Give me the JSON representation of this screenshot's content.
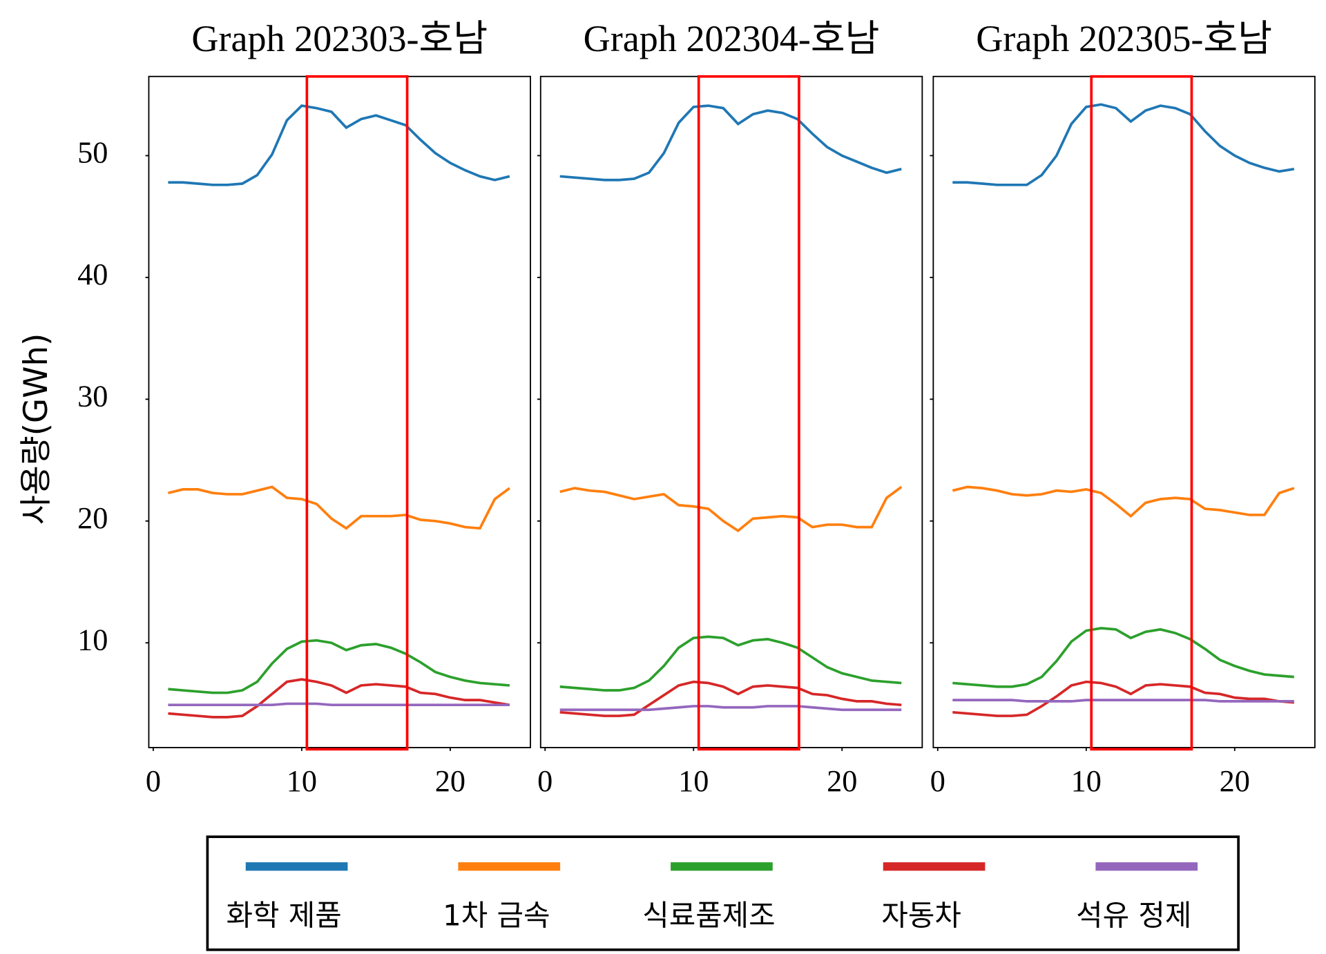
{
  "ylabel": "사용량(GWh)",
  "chart_data": [
    {
      "type": "line",
      "title": "Graph 202303-호남",
      "x": [
        1,
        2,
        3,
        4,
        5,
        6,
        7,
        8,
        9,
        10,
        11,
        12,
        13,
        14,
        15,
        16,
        17,
        18,
        19,
        20,
        21,
        22,
        23,
        24
      ],
      "xlim": [
        -0.3,
        25.4
      ],
      "xticks": [
        0,
        10,
        20
      ],
      "ylim": [
        1.4,
        56.5
      ],
      "yticks": [
        10,
        20,
        30,
        40,
        50
      ],
      "series": [
        {
          "name": "화학 제품",
          "color": "#1f77b4",
          "values": [
            47.8,
            47.8,
            47.7,
            47.6,
            47.6,
            47.7,
            48.4,
            50.1,
            52.9,
            54.1,
            53.9,
            53.6,
            52.3,
            53.0,
            53.3,
            52.9,
            52.5,
            51.3,
            50.2,
            49.4,
            48.8,
            48.3,
            48.0,
            48.3
          ]
        },
        {
          "name": "1차 금속",
          "color": "#ff7f0e",
          "values": [
            22.3,
            22.6,
            22.6,
            22.3,
            22.2,
            22.2,
            22.5,
            22.8,
            21.9,
            21.8,
            21.4,
            20.2,
            19.4,
            20.4,
            20.4,
            20.4,
            20.5,
            20.1,
            20.0,
            19.8,
            19.5,
            19.4,
            21.8,
            22.7
          ]
        },
        {
          "name": "식료품제조",
          "color": "#2ca02c",
          "values": [
            6.2,
            6.1,
            6.0,
            5.9,
            5.9,
            6.1,
            6.8,
            8.3,
            9.5,
            10.1,
            10.2,
            10.0,
            9.4,
            9.8,
            9.9,
            9.6,
            9.1,
            8.4,
            7.6,
            7.2,
            6.9,
            6.7,
            6.6,
            6.5
          ]
        },
        {
          "name": "자동차",
          "color": "#d62728",
          "values": [
            4.2,
            4.1,
            4.0,
            3.9,
            3.9,
            4.0,
            4.8,
            5.8,
            6.8,
            7.0,
            6.8,
            6.5,
            5.9,
            6.5,
            6.6,
            6.5,
            6.4,
            5.9,
            5.8,
            5.5,
            5.3,
            5.3,
            5.1,
            4.9
          ]
        },
        {
          "name": "석유 정제",
          "color": "#9467bd",
          "values": [
            4.9,
            4.9,
            4.9,
            4.9,
            4.9,
            4.9,
            4.9,
            4.9,
            5.0,
            5.0,
            5.0,
            4.9,
            4.9,
            4.9,
            4.9,
            4.9,
            4.9,
            4.9,
            4.9,
            4.9,
            4.9,
            4.9,
            4.9,
            4.9
          ]
        }
      ]
    },
    {
      "type": "line",
      "title": "Graph 202304-호남",
      "ytick_labels": false,
      "x": [
        1,
        2,
        3,
        4,
        5,
        6,
        7,
        8,
        9,
        10,
        11,
        12,
        13,
        14,
        15,
        16,
        17,
        18,
        19,
        20,
        21,
        22,
        23,
        24
      ],
      "xlim": [
        -0.3,
        25.4
      ],
      "xticks": [
        0,
        10,
        20
      ],
      "ylim": [
        1.4,
        56.5
      ],
      "yticks": [
        10,
        20,
        30,
        40,
        50
      ],
      "series": [
        {
          "name": "화학 제품",
          "color": "#1f77b4",
          "values": [
            48.3,
            48.2,
            48.1,
            48.0,
            48.0,
            48.1,
            48.6,
            50.2,
            52.7,
            54.0,
            54.1,
            53.9,
            52.6,
            53.4,
            53.7,
            53.5,
            53.0,
            51.8,
            50.7,
            50.0,
            49.5,
            49.0,
            48.6,
            48.9
          ]
        },
        {
          "name": "1차 금속",
          "color": "#ff7f0e",
          "values": [
            22.4,
            22.7,
            22.5,
            22.4,
            22.1,
            21.8,
            22.0,
            22.2,
            21.3,
            21.2,
            21.0,
            20.0,
            19.2,
            20.2,
            20.3,
            20.4,
            20.3,
            19.5,
            19.7,
            19.7,
            19.5,
            19.5,
            21.9,
            22.8
          ]
        },
        {
          "name": "식료품제조",
          "color": "#2ca02c",
          "values": [
            6.4,
            6.3,
            6.2,
            6.1,
            6.1,
            6.3,
            6.9,
            8.1,
            9.6,
            10.4,
            10.5,
            10.4,
            9.8,
            10.2,
            10.3,
            10.0,
            9.6,
            8.8,
            8.0,
            7.5,
            7.2,
            6.9,
            6.8,
            6.7
          ]
        },
        {
          "name": "자동차",
          "color": "#d62728",
          "values": [
            4.3,
            4.2,
            4.1,
            4.0,
            4.0,
            4.1,
            4.9,
            5.7,
            6.5,
            6.8,
            6.7,
            6.4,
            5.8,
            6.4,
            6.5,
            6.4,
            6.3,
            5.8,
            5.7,
            5.4,
            5.2,
            5.2,
            5.0,
            4.9
          ]
        },
        {
          "name": "석유 정제",
          "color": "#9467bd",
          "values": [
            4.5,
            4.5,
            4.5,
            4.5,
            4.5,
            4.5,
            4.5,
            4.6,
            4.7,
            4.8,
            4.8,
            4.7,
            4.7,
            4.7,
            4.8,
            4.8,
            4.8,
            4.7,
            4.6,
            4.5,
            4.5,
            4.5,
            4.5,
            4.5
          ]
        }
      ]
    },
    {
      "type": "line",
      "title": "Graph 202305-호남",
      "ytick_labels": false,
      "x": [
        1,
        2,
        3,
        4,
        5,
        6,
        7,
        8,
        9,
        10,
        11,
        12,
        13,
        14,
        15,
        16,
        17,
        18,
        19,
        20,
        21,
        22,
        23,
        24
      ],
      "xlim": [
        -0.3,
        25.4
      ],
      "xticks": [
        0,
        10,
        20
      ],
      "ylim": [
        1.4,
        56.5
      ],
      "yticks": [
        10,
        20,
        30,
        40,
        50
      ],
      "series": [
        {
          "name": "화학 제품",
          "color": "#1f77b4",
          "values": [
            47.8,
            47.8,
            47.7,
            47.6,
            47.6,
            47.6,
            48.4,
            50.0,
            52.6,
            54.0,
            54.2,
            53.9,
            52.8,
            53.7,
            54.1,
            53.9,
            53.4,
            52.0,
            50.8,
            50.0,
            49.4,
            49.0,
            48.7,
            48.9
          ]
        },
        {
          "name": "1차 금속",
          "color": "#ff7f0e",
          "values": [
            22.5,
            22.8,
            22.7,
            22.5,
            22.2,
            22.1,
            22.2,
            22.5,
            22.4,
            22.6,
            22.3,
            21.4,
            20.4,
            21.5,
            21.8,
            21.9,
            21.8,
            21.0,
            20.9,
            20.7,
            20.5,
            20.5,
            22.3,
            22.7
          ]
        },
        {
          "name": "식료품제조",
          "color": "#2ca02c",
          "values": [
            6.7,
            6.6,
            6.5,
            6.4,
            6.4,
            6.6,
            7.2,
            8.5,
            10.1,
            11.0,
            11.2,
            11.1,
            10.4,
            10.9,
            11.1,
            10.8,
            10.3,
            9.5,
            8.6,
            8.1,
            7.7,
            7.4,
            7.3,
            7.2
          ]
        },
        {
          "name": "자동차",
          "color": "#d62728",
          "values": [
            4.3,
            4.2,
            4.1,
            4.0,
            4.0,
            4.1,
            4.8,
            5.6,
            6.5,
            6.8,
            6.7,
            6.4,
            5.8,
            6.5,
            6.6,
            6.5,
            6.4,
            5.9,
            5.8,
            5.5,
            5.4,
            5.4,
            5.2,
            5.1
          ]
        },
        {
          "name": "석유 정제",
          "color": "#9467bd",
          "values": [
            5.3,
            5.3,
            5.3,
            5.3,
            5.3,
            5.2,
            5.2,
            5.2,
            5.2,
            5.3,
            5.3,
            5.3,
            5.3,
            5.3,
            5.3,
            5.3,
            5.3,
            5.3,
            5.2,
            5.2,
            5.2,
            5.2,
            5.2,
            5.2
          ]
        }
      ]
    }
  ]
}
